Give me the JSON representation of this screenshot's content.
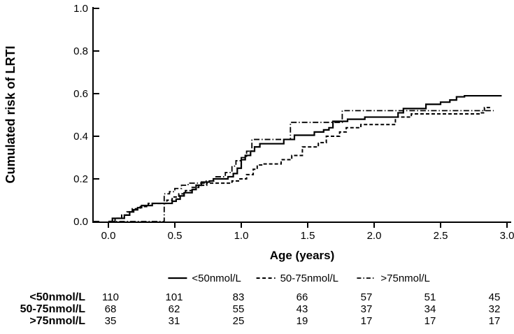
{
  "figure": {
    "background": "#ffffff",
    "foreground": "#000000"
  },
  "chart_data": {
    "type": "line",
    "variant": "step-cumulative-incidence",
    "title": "",
    "xlabel": "Age (years)",
    "ylabel": "Cumulated risk of LRTI",
    "xlim": [
      0,
      3.05
    ],
    "ylim": [
      0,
      1.0
    ],
    "xticks": {
      "values": [
        0,
        0.5,
        1.0,
        1.5,
        2.0,
        2.5,
        3.0
      ],
      "labels": [
        "0.0",
        "0.5",
        "1.0",
        "1.5",
        "2.0",
        "2.5",
        "3.0"
      ]
    },
    "yticks": {
      "values": [
        0,
        0.2,
        0.4,
        0.6,
        0.8,
        1.0
      ],
      "labels": [
        "0.0",
        "0.2",
        "0.4",
        "0.6",
        "0.8",
        "1.0"
      ]
    },
    "grid": false,
    "legend": {
      "position": "bottom",
      "entries": [
        "<50nmol/L",
        "50-75nmol/L",
        ">75nmol/L"
      ]
    },
    "series": [
      {
        "name": "<50nmol/L",
        "line_style": "solid",
        "color": "#000000",
        "points": [
          [
            0,
            0
          ],
          [
            0.03,
            0.015
          ],
          [
            0.12,
            0.03
          ],
          [
            0.16,
            0.045
          ],
          [
            0.19,
            0.055
          ],
          [
            0.22,
            0.065
          ],
          [
            0.25,
            0.075
          ],
          [
            0.33,
            0.085
          ],
          [
            0.48,
            0.095
          ],
          [
            0.51,
            0.105
          ],
          [
            0.54,
            0.12
          ],
          [
            0.57,
            0.135
          ],
          [
            0.63,
            0.15
          ],
          [
            0.66,
            0.17
          ],
          [
            0.7,
            0.185
          ],
          [
            0.76,
            0.19
          ],
          [
            0.79,
            0.2
          ],
          [
            0.9,
            0.21
          ],
          [
            0.94,
            0.225
          ],
          [
            0.97,
            0.25
          ],
          [
            1.0,
            0.29
          ],
          [
            1.03,
            0.31
          ],
          [
            1.07,
            0.33
          ],
          [
            1.1,
            0.35
          ],
          [
            1.14,
            0.365
          ],
          [
            1.32,
            0.385
          ],
          [
            1.4,
            0.405
          ],
          [
            1.55,
            0.42
          ],
          [
            1.62,
            0.43
          ],
          [
            1.66,
            0.44
          ],
          [
            1.69,
            0.47
          ],
          [
            1.8,
            0.48
          ],
          [
            1.93,
            0.49
          ],
          [
            2.18,
            0.51
          ],
          [
            2.22,
            0.53
          ],
          [
            2.39,
            0.55
          ],
          [
            2.5,
            0.56
          ],
          [
            2.57,
            0.57
          ],
          [
            2.62,
            0.585
          ],
          [
            2.68,
            0.59
          ],
          [
            2.96,
            0.59
          ]
        ]
      },
      {
        "name": "50-75nmol/L",
        "line_style": "dashed",
        "color": "#000000",
        "points": [
          [
            0,
            0
          ],
          [
            0.05,
            0.015
          ],
          [
            0.1,
            0.03
          ],
          [
            0.14,
            0.045
          ],
          [
            0.18,
            0.06
          ],
          [
            0.24,
            0.07
          ],
          [
            0.3,
            0.085
          ],
          [
            0.44,
            0.1
          ],
          [
            0.48,
            0.115
          ],
          [
            0.53,
            0.13
          ],
          [
            0.58,
            0.145
          ],
          [
            0.63,
            0.16
          ],
          [
            0.68,
            0.17
          ],
          [
            0.74,
            0.18
          ],
          [
            0.93,
            0.19
          ],
          [
            0.99,
            0.2
          ],
          [
            1.04,
            0.22
          ],
          [
            1.09,
            0.245
          ],
          [
            1.12,
            0.265
          ],
          [
            1.16,
            0.27
          ],
          [
            1.3,
            0.29
          ],
          [
            1.38,
            0.31
          ],
          [
            1.46,
            0.35
          ],
          [
            1.58,
            0.37
          ],
          [
            1.64,
            0.4
          ],
          [
            1.74,
            0.42
          ],
          [
            1.79,
            0.44
          ],
          [
            1.9,
            0.455
          ],
          [
            2.16,
            0.49
          ],
          [
            2.28,
            0.505
          ],
          [
            2.8,
            0.51
          ],
          [
            2.83,
            0.535
          ],
          [
            2.88,
            0.535
          ]
        ]
      },
      {
        "name": ">75nmol/L",
        "line_style": "dash-dot",
        "color": "#000000",
        "points": [
          [
            0,
            0
          ],
          [
            0.42,
            0.13
          ],
          [
            0.46,
            0.14
          ],
          [
            0.5,
            0.155
          ],
          [
            0.55,
            0.17
          ],
          [
            0.6,
            0.18
          ],
          [
            0.72,
            0.19
          ],
          [
            0.8,
            0.21
          ],
          [
            0.88,
            0.23
          ],
          [
            0.93,
            0.26
          ],
          [
            0.96,
            0.285
          ],
          [
            1.0,
            0.3
          ],
          [
            1.04,
            0.33
          ],
          [
            1.08,
            0.385
          ],
          [
            1.37,
            0.465
          ],
          [
            1.76,
            0.52
          ],
          [
            2.9,
            0.52
          ]
        ]
      }
    ]
  },
  "risk_table": {
    "rows": [
      {
        "label": "<50nmol/L",
        "values": [
          110,
          101,
          83,
          66,
          57,
          51,
          45
        ]
      },
      {
        "label": "50-75nmol/L",
        "values": [
          68,
          62,
          55,
          43,
          37,
          34,
          32
        ]
      },
      {
        "label": ">75nmol/L",
        "values": [
          35,
          31,
          25,
          19,
          17,
          17,
          17
        ]
      }
    ]
  }
}
